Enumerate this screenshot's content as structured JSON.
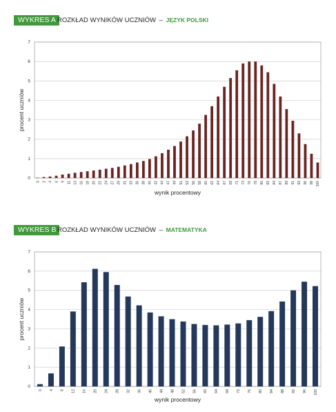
{
  "charts": [
    {
      "badge": "WYKRES A",
      "heading_main": "ROZKŁAD WYNIKÓW UCZNIÓW",
      "heading_sep": "–",
      "heading_subject": "JĘZYK POLSKI",
      "bar_color": "#6b2421"
    },
    {
      "badge": "WYKRES B",
      "heading_main": "ROZKŁAD WYNIKÓW UCZNIÓW",
      "heading_sep": "–",
      "heading_subject": "MATEMATYKA",
      "bar_color": "#24395a"
    }
  ],
  "colors": {
    "accent": "#3f9a3a",
    "grid": "#cfcfcf"
  },
  "chart_data": [
    {
      "type": "bar",
      "title": "ROZKŁAD WYNIKÓW UCZNIÓW – JĘZYK POLSKI",
      "xlabel": "wynik procentowy",
      "ylabel": "procent uczniów",
      "ylim": [
        0,
        7
      ],
      "yticks": [
        0,
        1,
        2,
        3,
        4,
        5,
        6,
        7
      ],
      "grid": true,
      "categories": [
        "0",
        "2",
        "4",
        "6",
        "9",
        "11",
        "13",
        "16",
        "18",
        "20",
        "22",
        "24",
        "27",
        "29",
        "31",
        "33",
        "36",
        "38",
        "40",
        "42",
        "44",
        "47",
        "49",
        "51",
        "53",
        "56",
        "58",
        "60",
        "62",
        "64",
        "67",
        "69",
        "71",
        "73",
        "76",
        "78",
        "80",
        "82",
        "84",
        "87",
        "89",
        "91",
        "93",
        "96",
        "98",
        "100"
      ],
      "values": [
        0.02,
        0.05,
        0.08,
        0.12,
        0.18,
        0.22,
        0.27,
        0.31,
        0.35,
        0.39,
        0.43,
        0.48,
        0.52,
        0.58,
        0.65,
        0.72,
        0.8,
        0.88,
        0.98,
        1.12,
        1.28,
        1.46,
        1.65,
        1.88,
        2.15,
        2.45,
        2.8,
        3.25,
        3.7,
        4.2,
        4.7,
        5.15,
        5.55,
        5.9,
        6.0,
        6.0,
        5.8,
        5.45,
        4.85,
        4.2,
        3.55,
        2.95,
        2.3,
        1.75,
        1.25,
        0.8
      ]
    },
    {
      "type": "bar",
      "title": "ROZKŁAD WYNIKÓW UCZNIÓW – MATEMATYKA",
      "xlabel": "wynik procentowy",
      "ylabel": "procent uczniów",
      "ylim": [
        0,
        7
      ],
      "yticks": [
        0,
        1,
        2,
        3,
        4,
        5,
        6,
        7
      ],
      "grid": true,
      "categories": [
        "0",
        "4",
        "8",
        "12",
        "16",
        "20",
        "24",
        "28",
        "32",
        "36",
        "40",
        "44",
        "48",
        "52",
        "56",
        "60",
        "64",
        "68",
        "72",
        "76",
        "80",
        "84",
        "88",
        "92",
        "96",
        "100"
      ],
      "values": [
        0.12,
        0.68,
        2.08,
        3.9,
        5.42,
        6.12,
        5.95,
        5.28,
        4.68,
        4.22,
        3.85,
        3.65,
        3.5,
        3.38,
        3.25,
        3.2,
        3.18,
        3.22,
        3.28,
        3.45,
        3.62,
        3.92,
        4.42,
        5.0,
        5.45,
        5.22
      ]
    }
  ]
}
